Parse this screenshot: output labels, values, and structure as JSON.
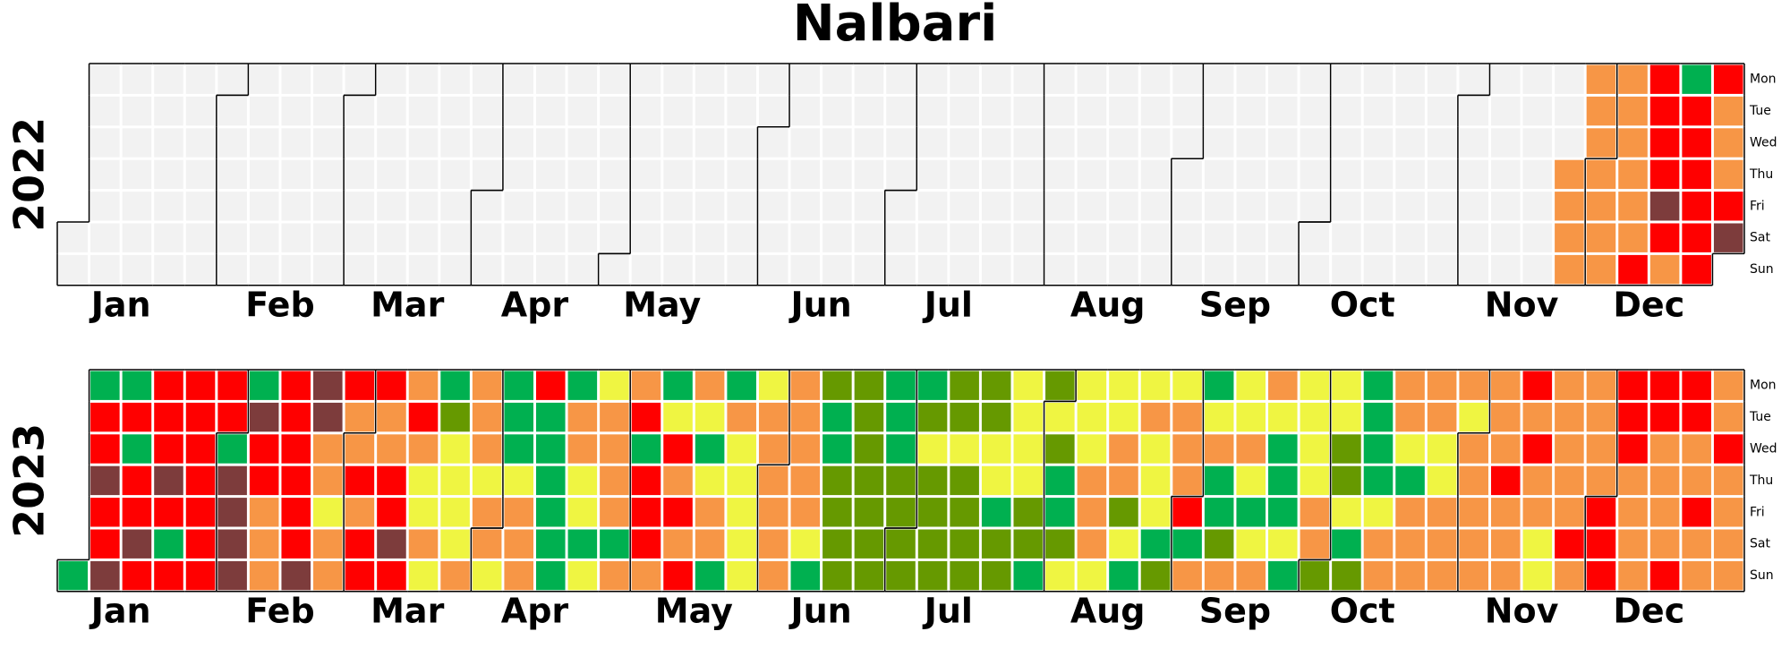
{
  "chart_data": {
    "type": "calendar",
    "title": "Nalbari",
    "months": [
      "Jan",
      "Feb",
      "Mar",
      "Apr",
      "May",
      "Jun",
      "Jul",
      "Aug",
      "Sep",
      "Oct",
      "Nov",
      "Dec"
    ],
    "weekdays": [
      "Mon",
      "Tue",
      "Wed",
      "Thu",
      "Fri",
      "Sat",
      "Sun"
    ],
    "empty_color": "#f2f2f2",
    "years": [
      {
        "year": 2022,
        "days": [
          null,
          null,
          null,
          null,
          null,
          null,
          null,
          null,
          null,
          null,
          null,
          null,
          null,
          null,
          null,
          null,
          null,
          null,
          null,
          null,
          null,
          null,
          null,
          null,
          null,
          null,
          null,
          null,
          null,
          null,
          null,
          null,
          null,
          null,
          null,
          null,
          null,
          null,
          null,
          null,
          null,
          null,
          null,
          null,
          null,
          null,
          null,
          null,
          null,
          null,
          null,
          null,
          null,
          null,
          null,
          null,
          null,
          null,
          null,
          null,
          null,
          null,
          null,
          null,
          null,
          null,
          null,
          null,
          null,
          null,
          null,
          null,
          null,
          null,
          null,
          null,
          null,
          null,
          null,
          null,
          null,
          null,
          null,
          null,
          null,
          null,
          null,
          null,
          null,
          null,
          null,
          null,
          null,
          null,
          null,
          null,
          null,
          null,
          null,
          null,
          null,
          null,
          null,
          null,
          null,
          null,
          null,
          null,
          null,
          null,
          null,
          null,
          null,
          null,
          null,
          null,
          null,
          null,
          null,
          null,
          null,
          null,
          null,
          null,
          null,
          null,
          null,
          null,
          null,
          null,
          null,
          null,
          null,
          null,
          null,
          null,
          null,
          null,
          null,
          null,
          null,
          null,
          null,
          null,
          null,
          null,
          null,
          null,
          null,
          null,
          null,
          null,
          null,
          null,
          null,
          null,
          null,
          null,
          null,
          null,
          null,
          null,
          null,
          null,
          null,
          null,
          null,
          null,
          null,
          null,
          null,
          null,
          null,
          null,
          null,
          null,
          null,
          null,
          null,
          null,
          null,
          null,
          null,
          null,
          null,
          null,
          null,
          null,
          null,
          null,
          null,
          null,
          null,
          null,
          null,
          null,
          null,
          null,
          null,
          null,
          null,
          null,
          null,
          null,
          null,
          null,
          null,
          null,
          null,
          null,
          null,
          null,
          null,
          null,
          null,
          null,
          null,
          null,
          null,
          null,
          null,
          null,
          null,
          null,
          null,
          null,
          null,
          null,
          null,
          null,
          null,
          null,
          null,
          null,
          null,
          null,
          null,
          null,
          null,
          null,
          null,
          null,
          null,
          null,
          null,
          null,
          null,
          null,
          null,
          null,
          null,
          null,
          null,
          null,
          null,
          null,
          null,
          null,
          null,
          null,
          null,
          null,
          null,
          null,
          null,
          null,
          null,
          null,
          null,
          null,
          null,
          null,
          null,
          null,
          null,
          null,
          null,
          null,
          null,
          null,
          null,
          null,
          null,
          null,
          null,
          null,
          null,
          null,
          null,
          null,
          null,
          null,
          null,
          null,
          null,
          null,
          null,
          null,
          null,
          null,
          null,
          null,
          null,
          null,
          null,
          null,
          null,
          null,
          null,
          null,
          null,
          null,
          null,
          null,
          null,
          null,
          null,
          null,
          null,
          null,
          null,
          null,
          null,
          null,
          null,
          null,
          null,
          "#f79646",
          "#f79646",
          "#f79646",
          "#f79646",
          "#f79646",
          "#f79646",
          "#f79646",
          "#f79646",
          "#f79646",
          "#f79646",
          "#f79646",
          "#f79646",
          "#f79646",
          "#f79646",
          "#f79646",
          "#f79646",
          "#f79646",
          "#ff0000",
          "#ff0000",
          "#ff0000",
          "#ff0000",
          "#ff0000",
          "#7d3c3c",
          "#ff0000",
          "#f79646",
          "#00b050",
          "#ff0000",
          "#ff0000",
          "#ff0000",
          "#ff0000",
          "#ff0000",
          "#ff0000",
          "#ff0000",
          "#f79646",
          "#f79646",
          "#f79646",
          "#ff0000",
          "#7d3c3c"
        ]
      },
      {
        "year": 2023,
        "days": [
          "#00b050",
          "#00b050",
          "#ff0000",
          "#ff0000",
          "#7d3c3c",
          "#ff0000",
          "#ff0000",
          "#7d3c3c",
          "#00b050",
          "#ff0000",
          "#00b050",
          "#ff0000",
          "#ff0000",
          "#7d3c3c",
          "#ff0000",
          "#ff0000",
          "#ff0000",
          "#ff0000",
          "#7d3c3c",
          "#ff0000",
          "#00b050",
          "#ff0000",
          "#ff0000",
          "#ff0000",
          "#ff0000",
          "#ff0000",
          "#ff0000",
          "#ff0000",
          "#ff0000",
          "#ff0000",
          "#ff0000",
          "#00b050",
          "#7d3c3c",
          "#7d3c3c",
          "#7d3c3c",
          "#7d3c3c",
          "#00b050",
          "#7d3c3c",
          "#ff0000",
          "#ff0000",
          "#f79646",
          "#f79646",
          "#f79646",
          "#ff0000",
          "#ff0000",
          "#ff0000",
          "#ff0000",
          "#ff0000",
          "#ff0000",
          "#7d3c3c",
          "#7d3c3c",
          "#7d3c3c",
          "#f79646",
          "#f79646",
          "#eff542",
          "#f79646",
          "#f79646",
          "#ff0000",
          "#f79646",
          "#f79646",
          "#ff0000",
          "#f79646",
          "#ff0000",
          "#ff0000",
          "#ff0000",
          "#f79646",
          "#f79646",
          "#ff0000",
          "#ff0000",
          "#7d3c3c",
          "#ff0000",
          "#f79646",
          "#ff0000",
          "#f79646",
          "#eff542",
          "#eff542",
          "#f79646",
          "#eff542",
          "#00b050",
          "#669900",
          "#eff542",
          "#eff542",
          "#eff542",
          "#eff542",
          "#f79646",
          "#f79646",
          "#f79646",
          "#f79646",
          "#eff542",
          "#f79646",
          "#f79646",
          "#eff542",
          "#00b050",
          "#00b050",
          "#00b050",
          "#eff542",
          "#f79646",
          "#f79646",
          "#f79646",
          "#ff0000",
          "#00b050",
          "#00b050",
          "#00b050",
          "#00b050",
          "#00b050",
          "#00b050",
          "#00b050",
          "#f79646",
          "#f79646",
          "#eff542",
          "#eff542",
          "#00b050",
          "#eff542",
          "#eff542",
          "#f79646",
          "#f79646",
          "#f79646",
          "#f79646",
          "#00b050",
          "#f79646",
          "#f79646",
          "#ff0000",
          "#00b050",
          "#ff0000",
          "#ff0000",
          "#ff0000",
          "#f79646",
          "#00b050",
          "#eff542",
          "#ff0000",
          "#f79646",
          "#ff0000",
          "#f79646",
          "#ff0000",
          "#f79646",
          "#eff542",
          "#00b050",
          "#eff542",
          "#f79646",
          "#f79646",
          "#00b050",
          "#00b050",
          "#f79646",
          "#eff542",
          "#eff542",
          "#eff542",
          "#eff542",
          "#eff542",
          "#eff542",
          "#f79646",
          "#f79646",
          "#f79646",
          "#f79646",
          "#f79646",
          "#f79646",
          "#f79646",
          "#f79646",
          "#f79646",
          "#f79646",
          "#f79646",
          "#eff542",
          "#00b050",
          "#669900",
          "#00b050",
          "#00b050",
          "#669900",
          "#669900",
          "#669900",
          "#669900",
          "#669900",
          "#669900",
          "#669900",
          "#669900",
          "#669900",
          "#669900",
          "#669900",
          "#00b050",
          "#00b050",
          "#00b050",
          "#669900",
          "#669900",
          "#669900",
          "#669900",
          "#00b050",
          "#669900",
          "#eff542",
          "#669900",
          "#669900",
          "#669900",
          "#669900",
          "#669900",
          "#669900",
          "#eff542",
          "#669900",
          "#669900",
          "#669900",
          "#669900",
          "#669900",
          "#669900",
          "#eff542",
          "#eff542",
          "#00b050",
          "#669900",
          "#669900",
          "#eff542",
          "#eff542",
          "#eff542",
          "#eff542",
          "#669900",
          "#669900",
          "#00b050",
          "#669900",
          "#eff542",
          "#669900",
          "#00b050",
          "#00b050",
          "#669900",
          "#eff542",
          "#eff542",
          "#eff542",
          "#eff542",
          "#f79646",
          "#f79646",
          "#f79646",
          "#eff542",
          "#eff542",
          "#eff542",
          "#f79646",
          "#f79646",
          "#669900",
          "#eff542",
          "#00b050",
          "#eff542",
          "#f79646",
          "#eff542",
          "#eff542",
          "#eff542",
          "#00b050",
          "#669900",
          "#eff542",
          "#f79646",
          "#f79646",
          "#f79646",
          "#ff0000",
          "#00b050",
          "#f79646",
          "#00b050",
          "#eff542",
          "#f79646",
          "#00b050",
          "#00b050",
          "#669900",
          "#f79646",
          "#eff542",
          "#eff542",
          "#f79646",
          "#eff542",
          "#00b050",
          "#eff542",
          "#f79646",
          "#f79646",
          "#eff542",
          "#00b050",
          "#00b050",
          "#00b050",
          "#eff542",
          "#00b050",
          "#eff542",
          "#eff542",
          "#eff542",
          "#eff542",
          "#f79646",
          "#f79646",
          "#669900",
          "#eff542",
          "#eff542",
          "#669900",
          "#669900",
          "#eff542",
          "#00b050",
          "#669900",
          "#00b050",
          "#00b050",
          "#00b050",
          "#00b050",
          "#eff542",
          "#f79646",
          "#f79646",
          "#f79646",
          "#f79646",
          "#eff542",
          "#00b050",
          "#f79646",
          "#f79646",
          "#f79646",
          "#f79646",
          "#f79646",
          "#eff542",
          "#eff542",
          "#f79646",
          "#f79646",
          "#f79646",
          "#f79646",
          "#eff542",
          "#f79646",
          "#f79646",
          "#f79646",
          "#f79646",
          "#f79646",
          "#f79646",
          "#f79646",
          "#f79646",
          "#ff0000",
          "#f79646",
          "#f79646",
          "#f79646",
          "#ff0000",
          "#f79646",
          "#ff0000",
          "#f79646",
          "#f79646",
          "#eff542",
          "#eff542",
          "#f79646",
          "#f79646",
          "#f79646",
          "#f79646",
          "#f79646",
          "#ff0000",
          "#f79646",
          "#f79646",
          "#f79646",
          "#f79646",
          "#f79646",
          "#ff0000",
          "#ff0000",
          "#ff0000",
          "#ff0000",
          "#ff0000",
          "#ff0000",
          "#f79646",
          "#f79646",
          "#f79646",
          "#f79646",
          "#ff0000",
          "#ff0000",
          "#f79646",
          "#f79646",
          "#f79646",
          "#f79646",
          "#ff0000",
          "#ff0000",
          "#ff0000",
          "#f79646",
          "#f79646",
          "#ff0000",
          "#f79646",
          "#f79646",
          "#f79646",
          "#f79646",
          "#ff0000",
          "#f79646",
          "#f79646",
          "#f79646",
          "#f79646"
        ]
      }
    ]
  }
}
